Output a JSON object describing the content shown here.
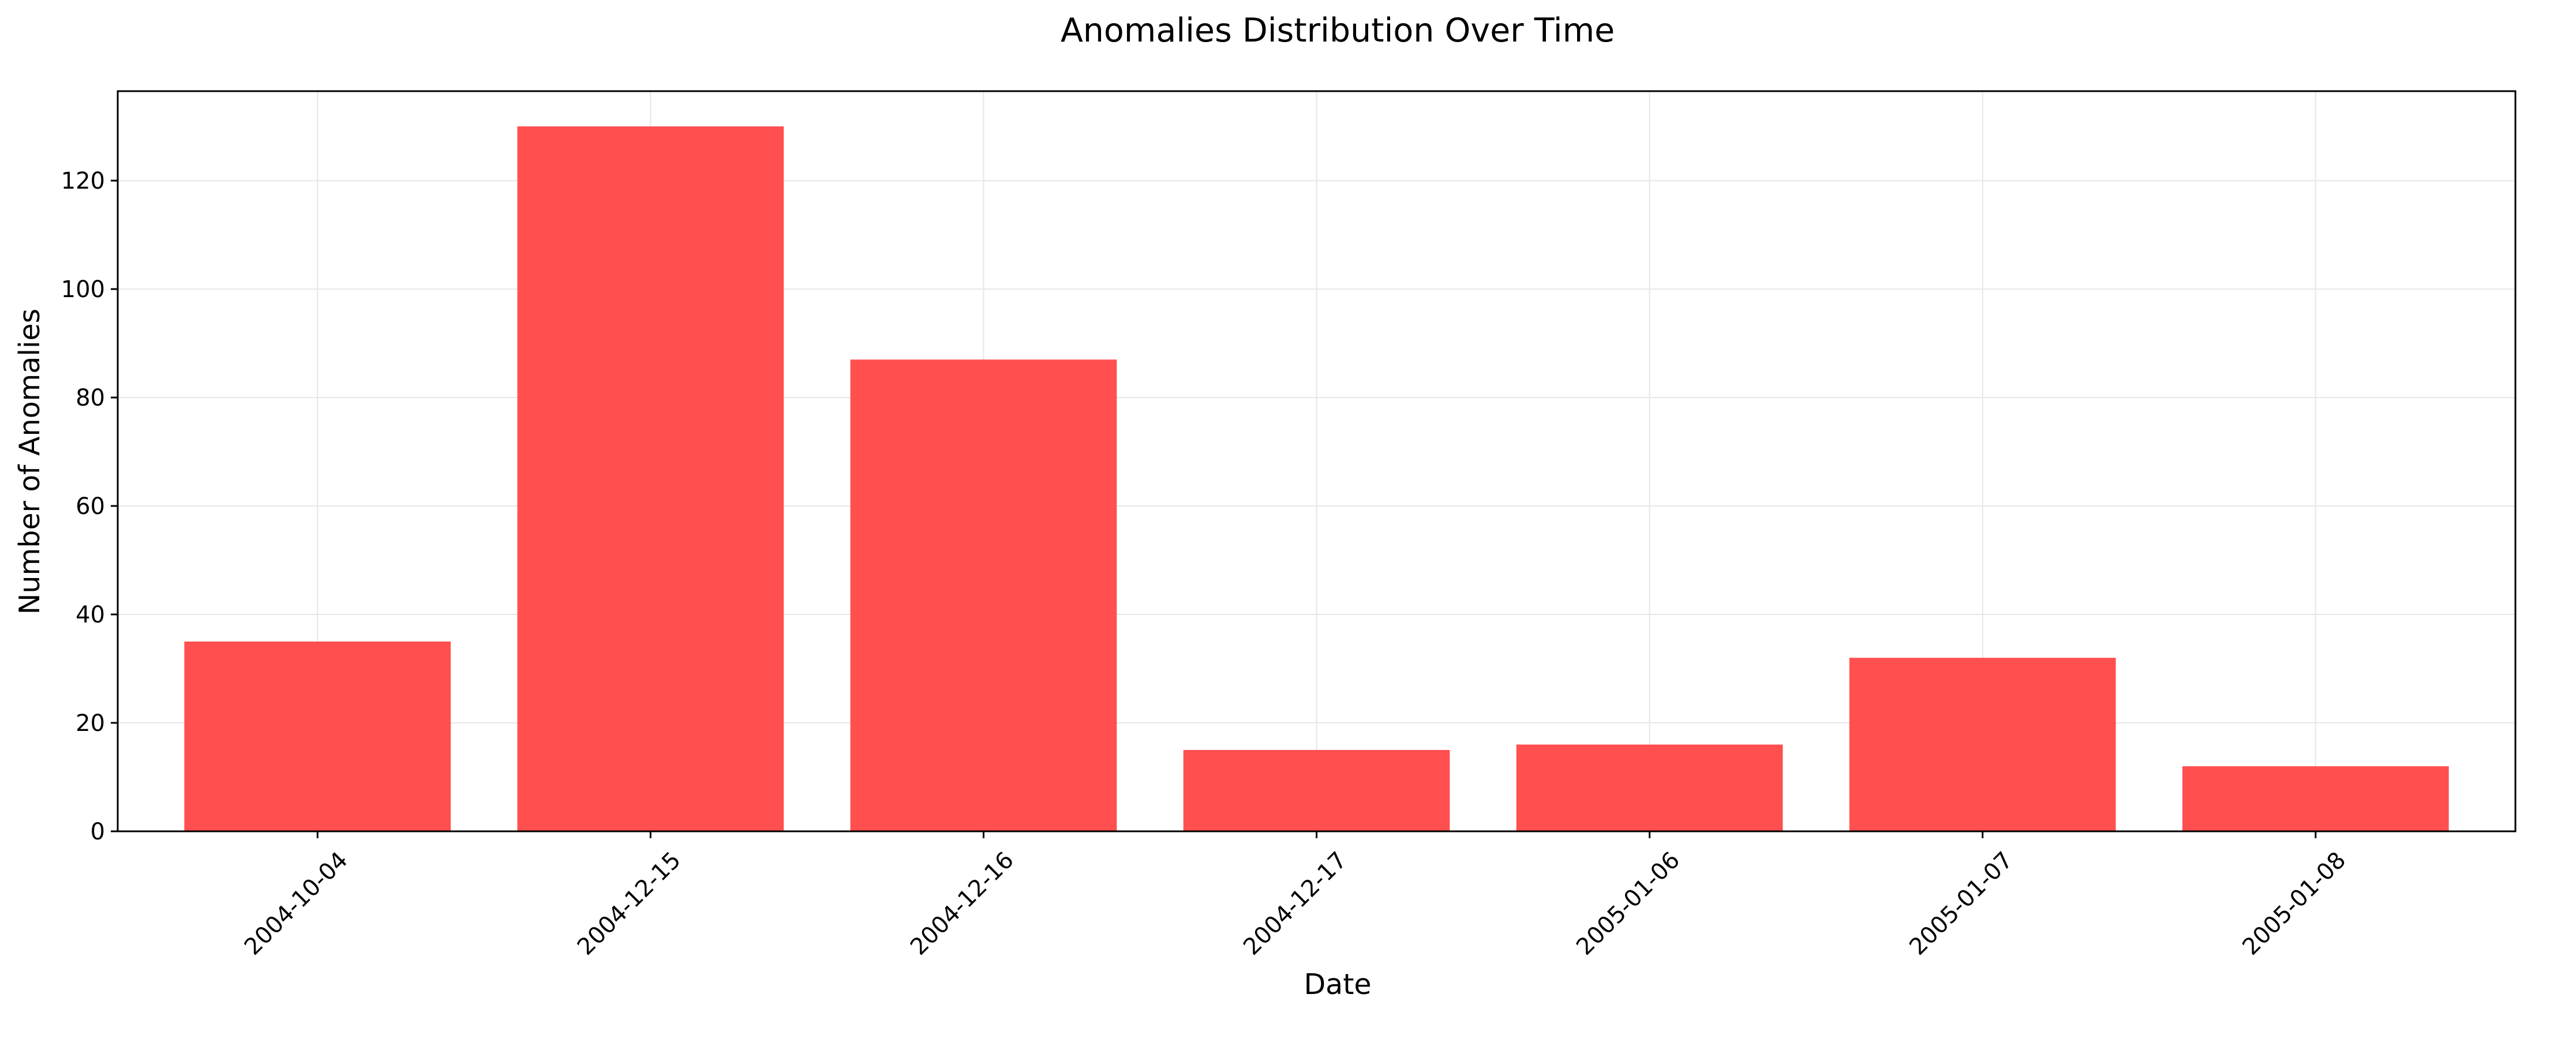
{
  "chart_data": {
    "type": "bar",
    "title": "Anomalies Distribution Over Time",
    "xlabel": "Date",
    "ylabel": "Number of Anomalies",
    "categories": [
      "2004-10-04",
      "2004-12-15",
      "2004-12-16",
      "2004-12-17",
      "2005-01-06",
      "2005-01-07",
      "2005-01-08"
    ],
    "values": [
      35,
      130,
      87,
      15,
      16,
      32,
      12
    ],
    "ylim": [
      0,
      136.5
    ],
    "yticks": [
      0,
      20,
      40,
      60,
      80,
      100,
      120
    ],
    "grid": true,
    "legend": "none",
    "colors": {
      "bar": "#ff4f4f",
      "grid": "#e6e6e6",
      "axis": "#000000"
    }
  }
}
